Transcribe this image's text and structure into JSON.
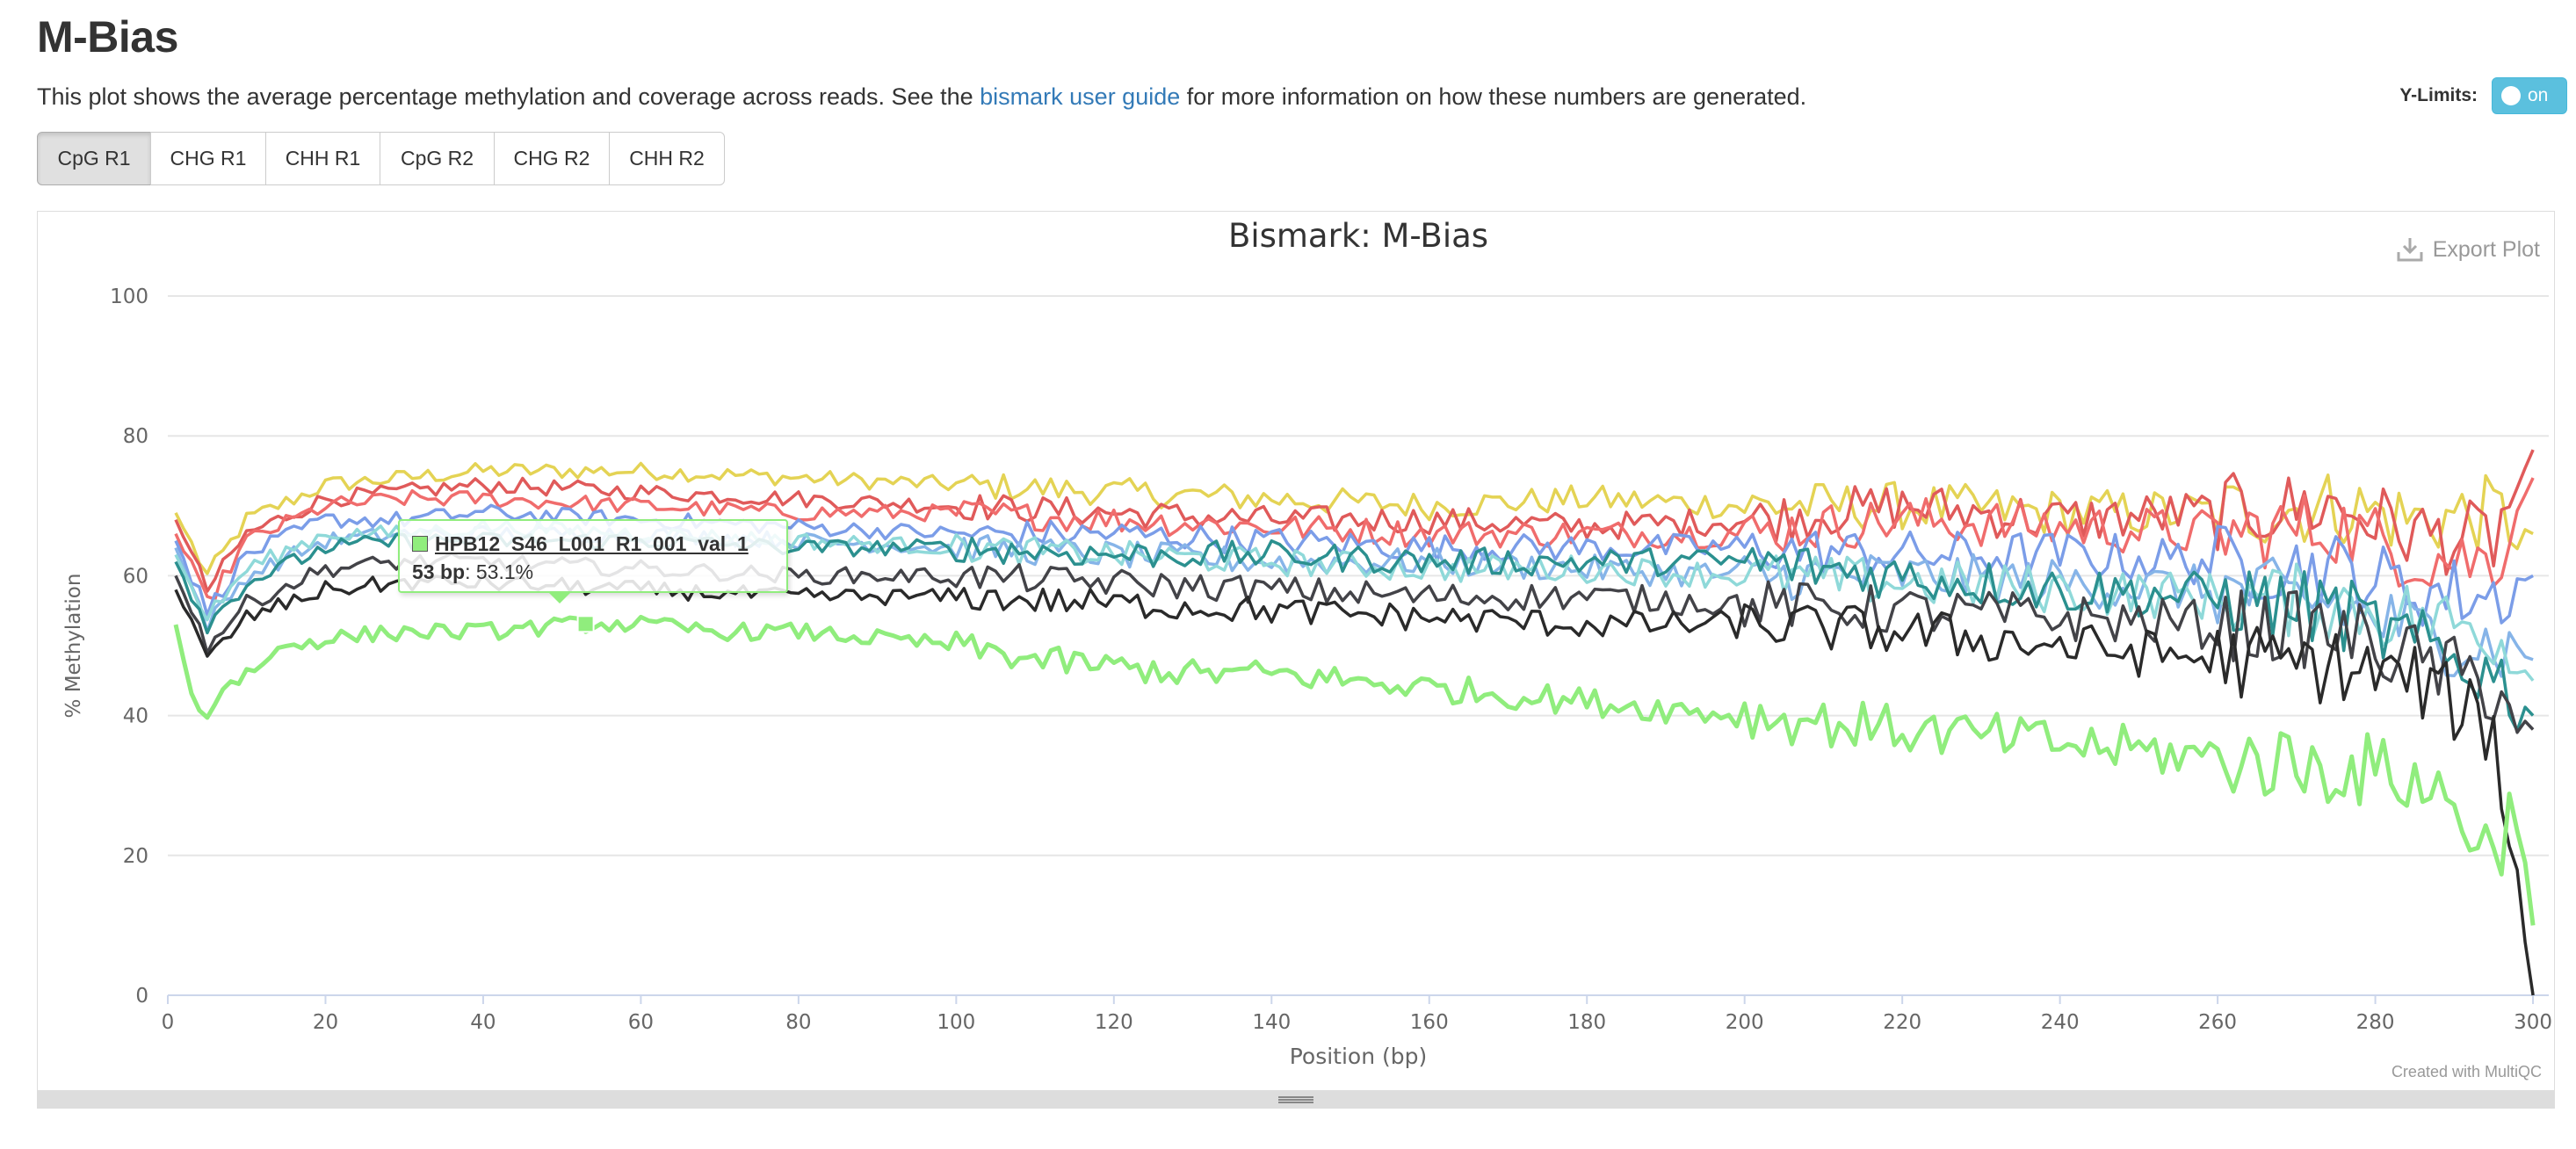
{
  "header": {
    "title": "M-Bias",
    "description_before": "This plot shows the average percentage methylation and coverage across reads. See the ",
    "description_link": "bismark user guide",
    "description_after": " for more information on how these numbers are generated."
  },
  "ylimits": {
    "label": "Y-Limits:",
    "toggle_label": "on"
  },
  "tabs": [
    {
      "label": "CpG R1",
      "active": true
    },
    {
      "label": "CHG R1",
      "active": false
    },
    {
      "label": "CHH R1",
      "active": false
    },
    {
      "label": "CpG R2",
      "active": false
    },
    {
      "label": "CHG R2",
      "active": false
    },
    {
      "label": "CHH R2",
      "active": false
    }
  ],
  "plot": {
    "export_label": "Export Plot",
    "credit": "Created with MultiQC"
  },
  "tooltip": {
    "series": "HPB12_S46_L001_R1_001_val_1",
    "x_label": "53 bp",
    "y_value": ": 53.1%"
  },
  "chart_data": {
    "type": "line",
    "title": "Bismark: M-Bias",
    "xlabel": "Position (bp)",
    "ylabel": "% Methylation",
    "xlim": [
      0,
      302
    ],
    "ylim": [
      0,
      100
    ],
    "xticks": [
      0,
      20,
      40,
      60,
      80,
      100,
      120,
      140,
      160,
      180,
      200,
      220,
      240,
      260,
      280,
      300
    ],
    "yticks": [
      0,
      20,
      40,
      60,
      80,
      100
    ],
    "grid": true,
    "colors": {
      "gold": "#e4d354",
      "red": "#e05a5a",
      "lightred": "#f06c6c",
      "blue": "#7b9de8",
      "skyblue": "#86b4e8",
      "cyan": "#8fd9d9",
      "teal": "#2b908f",
      "darknavy": "#434348",
      "black": "#2a2a2a",
      "green": "#90ed7d"
    },
    "series": [
      {
        "color": "#e4d354",
        "x": [
          1,
          5,
          10,
          20,
          30,
          40,
          60,
          80,
          100,
          120,
          140,
          160,
          180,
          200,
          220,
          240,
          260,
          275,
          285,
          295,
          300
        ],
        "y": [
          69,
          60,
          68,
          73,
          74,
          75,
          75,
          74,
          73,
          72,
          71,
          70,
          71,
          70,
          70,
          69,
          69,
          70,
          68,
          69,
          66
        ]
      },
      {
        "color": "#e05a5a",
        "x": [
          1,
          5,
          10,
          20,
          30,
          40,
          60,
          80,
          100,
          120,
          140,
          160,
          180,
          200,
          220,
          240,
          260,
          275,
          285,
          295,
          300
        ],
        "y": [
          68,
          58,
          66,
          71,
          72,
          73,
          72,
          71,
          70,
          69,
          68,
          68,
          67,
          68,
          70,
          68,
          69,
          70,
          66,
          65,
          78
        ]
      },
      {
        "color": "#f06c6c",
        "x": [
          1,
          5,
          10,
          20,
          30,
          40,
          60,
          80,
          100,
          120,
          140,
          160,
          180,
          200,
          220,
          240,
          260,
          275,
          285,
          295,
          300
        ],
        "y": [
          66,
          56,
          65,
          70,
          71,
          71,
          70,
          69,
          69,
          68,
          67,
          66,
          66,
          66,
          68,
          67,
          66,
          67,
          63,
          62,
          74
        ]
      },
      {
        "color": "#7b9de8",
        "x": [
          1,
          5,
          10,
          20,
          30,
          40,
          60,
          80,
          100,
          120,
          140,
          160,
          180,
          200,
          220,
          240,
          260,
          275,
          285,
          295,
          300
        ],
        "y": [
          65,
          55,
          63,
          68,
          68,
          69,
          68,
          67,
          66,
          66,
          65,
          64,
          64,
          64,
          63,
          63,
          62,
          61,
          58,
          57,
          60
        ]
      },
      {
        "color": "#86b4e8",
        "x": [
          1,
          5,
          10,
          20,
          30,
          40,
          60,
          80,
          100,
          120,
          140,
          160,
          180,
          200,
          220,
          240,
          260,
          275,
          285,
          295,
          300
        ],
        "y": [
          64,
          53,
          60,
          65,
          66,
          66,
          66,
          65,
          64,
          63,
          62,
          62,
          61,
          60,
          60,
          59,
          58,
          56,
          52,
          50,
          48
        ]
      },
      {
        "color": "#8fd9d9",
        "x": [
          1,
          5,
          10,
          20,
          30,
          40,
          60,
          80,
          100,
          120,
          140,
          160,
          180,
          200,
          220,
          240,
          260,
          275,
          285,
          295,
          300
        ],
        "y": [
          63,
          54,
          61,
          66,
          66,
          67,
          66,
          65,
          64,
          63,
          62,
          61,
          61,
          60,
          59,
          58,
          57,
          56,
          54,
          52,
          45
        ]
      },
      {
        "color": "#2b908f",
        "x": [
          1,
          5,
          10,
          20,
          30,
          40,
          60,
          80,
          100,
          120,
          140,
          160,
          180,
          200,
          220,
          240,
          260,
          275,
          285,
          295,
          300
        ],
        "y": [
          62,
          53,
          59,
          64,
          65,
          65,
          65,
          64,
          64,
          63,
          63,
          62,
          62,
          62,
          60,
          58,
          57,
          55,
          50,
          46,
          40
        ]
      },
      {
        "color": "#434348",
        "x": [
          1,
          5,
          10,
          20,
          30,
          40,
          60,
          80,
          100,
          120,
          140,
          160,
          180,
          200,
          220,
          240,
          260,
          275,
          285,
          295,
          300
        ],
        "y": [
          60,
          50,
          56,
          61,
          62,
          62,
          61,
          60,
          60,
          59,
          58,
          57,
          57,
          56,
          55,
          54,
          53,
          52,
          48,
          44,
          38
        ]
      },
      {
        "color": "#2a2a2a",
        "x": [
          1,
          5,
          10,
          20,
          30,
          40,
          60,
          80,
          100,
          120,
          140,
          160,
          180,
          200,
          220,
          240,
          260,
          275,
          285,
          295,
          300
        ],
        "y": [
          58,
          48,
          54,
          58,
          59,
          59,
          58,
          57,
          57,
          56,
          55,
          54,
          53,
          53,
          52,
          50,
          48,
          47,
          45,
          38,
          0
        ]
      },
      {
        "name": "HPB12_S46_L001_R1_001_val_1",
        "color": "#90ed7d",
        "x": [
          1,
          3,
          5,
          7,
          10,
          15,
          20,
          30,
          40,
          53,
          60,
          70,
          80,
          90,
          100,
          110,
          120,
          130,
          140,
          150,
          160,
          170,
          180,
          190,
          200,
          210,
          220,
          230,
          240,
          250,
          260,
          270,
          280,
          285,
          290,
          295,
          298,
          300
        ],
        "y": [
          53,
          43,
          40,
          44,
          46,
          50,
          51,
          52,
          52,
          53.1,
          53,
          52,
          52,
          51,
          50,
          48,
          47,
          46,
          46,
          45,
          44,
          43,
          42,
          41,
          40,
          39,
          38,
          37,
          36,
          35,
          34,
          33,
          32,
          31,
          27,
          20,
          28,
          10
        ]
      }
    ],
    "highlight": {
      "x": 53,
      "y": 53.1
    }
  }
}
